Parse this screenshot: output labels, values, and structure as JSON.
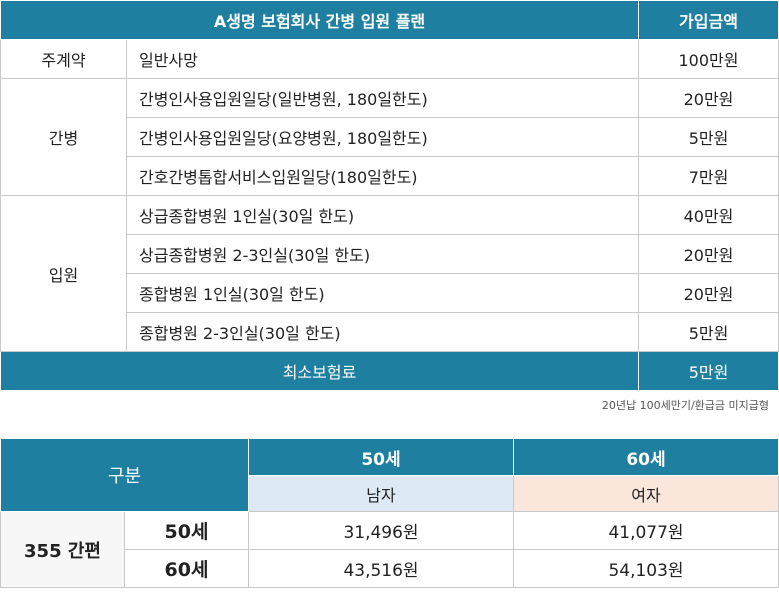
{
  "plan_table": {
    "title": "A생명 보험회사 간병 입원 플랜",
    "amount_header": "가입금액",
    "main": {
      "category": "주계약",
      "item": "일반사망",
      "amount": "100만원"
    },
    "care": {
      "category": "간병",
      "rows": [
        {
          "item": "간병인사용입원일당(일반병원, 180일한도)",
          "amount": "20만원"
        },
        {
          "item": "간병인사용입원일당(요양병원, 180일한도)",
          "amount": "5만원"
        },
        {
          "item": "간호간병톱합서비스입원일당(180일한도)",
          "amount": "7만원"
        }
      ]
    },
    "hospital": {
      "category": "입원",
      "rows": [
        {
          "item": "상급종합병원 1인실(30일 한도)",
          "amount": "40만원"
        },
        {
          "item": "상급종합병원 2-3인실(30일 한도)",
          "amount": "20만원"
        },
        {
          "item": "종합병원 1인실(30일 한도)",
          "amount": "20만원"
        },
        {
          "item": "종합병원 2-3인실(30일 한도)",
          "amount": "5만원"
        }
      ]
    },
    "footer": {
      "label": "최소보험료",
      "amount": "5만원"
    }
  },
  "note": "20년납 100세만기/환급금  미지급형",
  "premium_table": {
    "corner": "구분",
    "col_50": "50세",
    "col_60": "60세",
    "male": "남자",
    "female": "여자",
    "row_group": "355 간편",
    "rows": [
      {
        "age": "50세",
        "male": "31,496원",
        "female": "41,077원"
      },
      {
        "age": "60세",
        "male": "43,516원",
        "female": "54,103원"
      }
    ]
  },
  "colors": {
    "header": "#1e7fa0",
    "male_bg": "#dde9f5",
    "female_bg": "#fbe6db"
  }
}
